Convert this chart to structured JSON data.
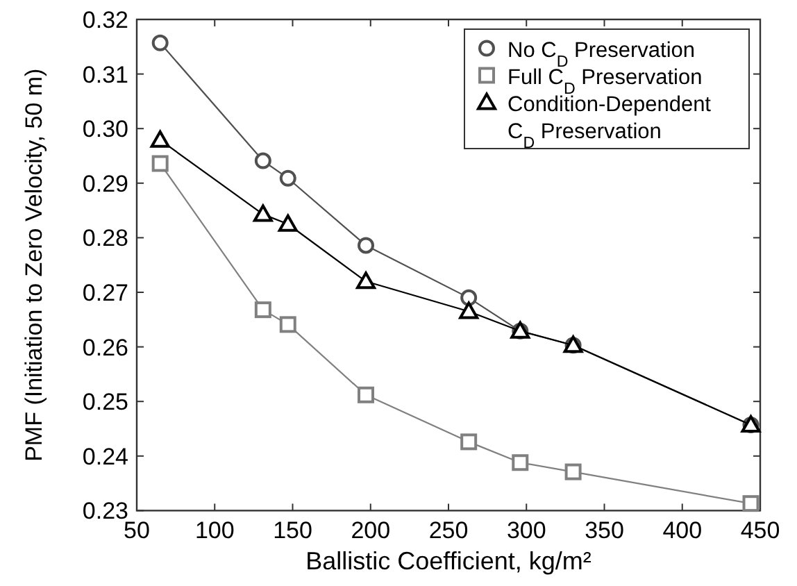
{
  "chart_data": {
    "type": "line",
    "xlabel": "Ballistic Coefficient, kg/m²",
    "ylabel": "PMF (Initiation to Zero Velocity, 50 m)",
    "x": [
      65,
      131,
      147,
      197,
      263,
      296,
      330,
      444
    ],
    "series": [
      {
        "name": "No C$_{D}$ Preservation",
        "color": "#505050",
        "marker": "circle",
        "values": [
          0.3157,
          0.2941,
          0.2909,
          0.2786,
          0.269,
          0.2629,
          0.2603,
          0.2457
        ]
      },
      {
        "name": "Full C$_{D}$ Preservation",
        "color": "#808080",
        "marker": "square",
        "values": [
          0.2936,
          0.2668,
          0.2641,
          0.2512,
          0.2426,
          0.2388,
          0.2371,
          0.2313
        ]
      },
      {
        "name": "Condition-Dependent C$_{D}$ Preservation",
        "color": "#000000",
        "marker": "triangle",
        "values": [
          0.2979,
          0.2843,
          0.2825,
          0.272,
          0.2665,
          0.2629,
          0.2603,
          0.2457
        ]
      }
    ],
    "xlim": [
      50,
      450
    ],
    "xticks": [
      50,
      100,
      150,
      200,
      250,
      300,
      350,
      400,
      450
    ],
    "ylim": [
      0.23,
      0.32
    ],
    "yticks": [
      {
        "value": 0.23,
        "label": "0.23"
      },
      {
        "value": 0.24,
        "label": "0.24"
      },
      {
        "value": 0.25,
        "label": "0.25"
      },
      {
        "value": 0.26,
        "label": "0.26"
      },
      {
        "value": 0.27,
        "label": "0.27"
      },
      {
        "value": 0.28,
        "label": "0.28"
      },
      {
        "value": 0.29,
        "label": "0.29"
      },
      {
        "value": 0.3,
        "label": "0.30"
      },
      {
        "value": 0.31,
        "label": "0.31"
      },
      {
        "value": 0.32,
        "label": "0.32"
      }
    ],
    "grid": false,
    "legend": "top right",
    "line_style": "solid"
  }
}
